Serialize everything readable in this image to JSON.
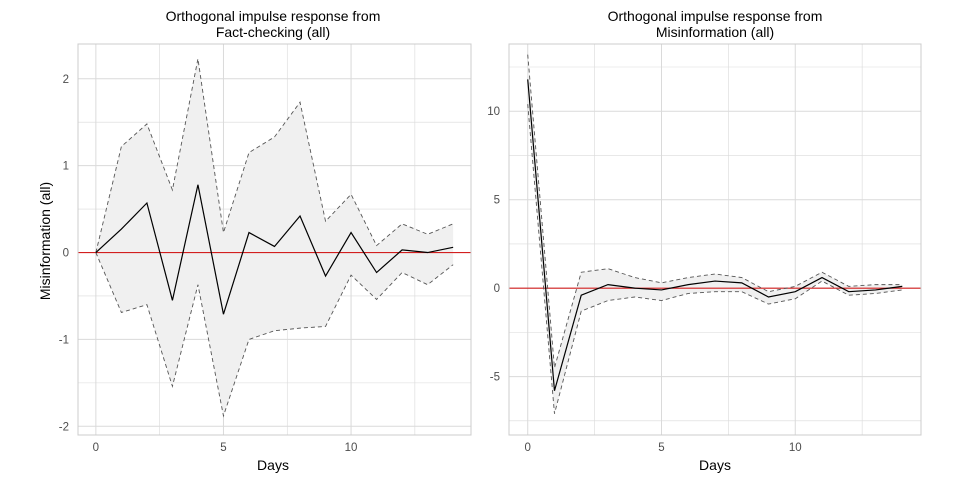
{
  "chart_data": [
    {
      "type": "line",
      "title": [
        "Orthogonal impulse response from",
        "Fact-checking  (all)"
      ],
      "xlabel": "Days",
      "ylabel": "Misinformation (all)",
      "xlim": [
        -0.7,
        14.7
      ],
      "ylim": [
        -2.1,
        2.4
      ],
      "xticks": [
        0,
        5,
        10
      ],
      "yticks": [
        -2,
        -1,
        0,
        1,
        2
      ],
      "grid": true,
      "x": [
        0,
        1,
        2,
        3,
        4,
        5,
        6,
        7,
        8,
        9,
        10,
        11,
        12,
        13,
        14
      ],
      "series": [
        {
          "role": "estimate",
          "values": [
            0,
            0.27,
            0.57,
            -0.55,
            0.78,
            -0.71,
            0.23,
            0.07,
            0.42,
            -0.27,
            0.23,
            -0.23,
            0.03,
            0.0,
            0.06
          ]
        },
        {
          "role": "upper",
          "values": [
            0,
            1.22,
            1.48,
            0.72,
            2.23,
            0.23,
            1.15,
            1.33,
            1.73,
            0.36,
            0.67,
            0.08,
            0.33,
            0.21,
            0.33
          ]
        },
        {
          "role": "lower",
          "values": [
            0,
            -0.69,
            -0.6,
            -1.54,
            -0.37,
            -1.88,
            -1.0,
            -0.9,
            -0.87,
            -0.85,
            -0.26,
            -0.54,
            -0.23,
            -0.37,
            -0.14
          ]
        }
      ],
      "reference_line": {
        "y": 0,
        "color": "#d21f1f"
      },
      "colors": {
        "band": "#f0f0f0",
        "line": "#000000",
        "bounds": "#555555",
        "grid": "#dadada",
        "panel_border": "#cccccc"
      }
    },
    {
      "type": "line",
      "title": [
        "Orthogonal impulse response from",
        "Misinformation (all)"
      ],
      "xlabel": "Days",
      "ylabel": "",
      "xlim": [
        -0.7,
        14.7
      ],
      "ylim": [
        -8.3,
        13.8
      ],
      "xticks": [
        0,
        5,
        10
      ],
      "yticks": [
        -5,
        0,
        5,
        10
      ],
      "grid": true,
      "x": [
        0,
        1,
        2,
        3,
        4,
        5,
        6,
        7,
        8,
        9,
        10,
        11,
        12,
        13,
        14
      ],
      "series": [
        {
          "role": "estimate",
          "values": [
            11.8,
            -5.8,
            -0.4,
            0.2,
            0.0,
            -0.1,
            0.2,
            0.4,
            0.3,
            -0.5,
            -0.2,
            0.6,
            -0.2,
            -0.1,
            0.1
          ]
        },
        {
          "role": "upper",
          "values": [
            13.2,
            -4.5,
            0.9,
            1.1,
            0.6,
            0.3,
            0.6,
            0.8,
            0.6,
            -0.2,
            0.1,
            0.9,
            0.1,
            0.2,
            0.2
          ]
        },
        {
          "role": "lower",
          "values": [
            10.4,
            -7.1,
            -1.3,
            -0.7,
            -0.5,
            -0.7,
            -0.3,
            -0.2,
            -0.2,
            -0.9,
            -0.6,
            0.4,
            -0.4,
            -0.3,
            -0.1
          ]
        }
      ],
      "reference_line": {
        "y": 0,
        "color": "#d21f1f"
      },
      "colors": {
        "band": "#f0f0f0",
        "line": "#000000",
        "bounds": "#555555",
        "grid": "#dadada",
        "panel_border": "#cccccc"
      }
    }
  ]
}
